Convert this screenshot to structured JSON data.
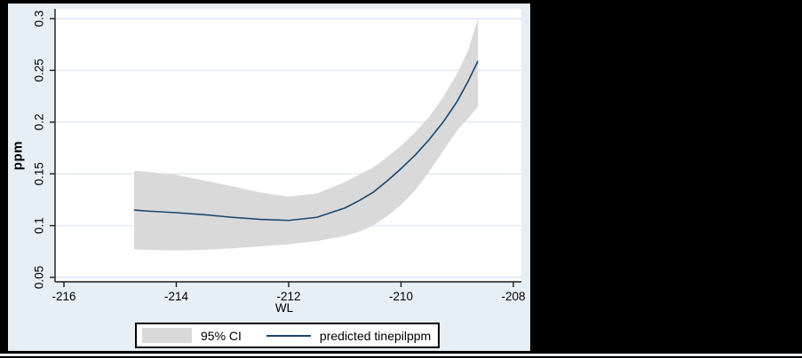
{
  "window": {
    "background": "#000000"
  },
  "colors": {
    "chart_background": "#e6eef6",
    "plot_background": "#ffffff",
    "gridline": "#ddeaf6",
    "axis": "#1a1a1a",
    "ci_band": "#d9d9d9",
    "fit_line": "#1a476f",
    "legend_background": "#ffffff",
    "legend_border": "#000000"
  },
  "chart_data": {
    "type": "line",
    "title": "",
    "xlabel": "WL",
    "ylabel": "ppm",
    "xlim": [
      -216,
      -208
    ],
    "ylim": [
      0.05,
      0.3
    ],
    "xticks": [
      -216,
      -214,
      -212,
      -210,
      -208
    ],
    "xtick_labels": [
      "-216",
      "-214",
      "-212",
      "-210",
      "-208"
    ],
    "yticks": [
      0.05,
      0.1,
      0.15,
      0.2,
      0.25,
      0.3
    ],
    "ytick_labels": [
      "0.05",
      "0.1",
      "0.15",
      "0.2",
      "0.25",
      "0.3"
    ],
    "grid": "horizontal",
    "legend_position": "bottom",
    "x": [
      -214.75,
      -214.5,
      -214,
      -213.5,
      -213,
      -212.5,
      -212,
      -211.5,
      -211,
      -210.75,
      -210.5,
      -210.25,
      -210,
      -209.75,
      -209.5,
      -209.25,
      -209,
      -208.8,
      -208.63
    ],
    "series": [
      {
        "name": "95% CI",
        "type": "band",
        "lower": [
          0.077,
          0.0765,
          0.076,
          0.0765,
          0.078,
          0.08,
          0.082,
          0.085,
          0.09,
          0.094,
          0.1,
          0.109,
          0.12,
          0.134,
          0.152,
          0.172,
          0.192,
          0.204,
          0.215
        ],
        "upper": [
          0.153,
          0.152,
          0.149,
          0.1435,
          0.138,
          0.132,
          0.128,
          0.131,
          0.142,
          0.149,
          0.156,
          0.166,
          0.177,
          0.19,
          0.205,
          0.224,
          0.247,
          0.27,
          0.3
        ]
      },
      {
        "name": "predicted tinepilppm",
        "type": "line",
        "values": [
          0.115,
          0.114,
          0.1125,
          0.1105,
          0.108,
          0.106,
          0.105,
          0.108,
          0.117,
          0.124,
          0.132,
          0.143,
          0.155,
          0.168,
          0.183,
          0.2,
          0.22,
          0.24,
          0.259
        ]
      }
    ]
  }
}
